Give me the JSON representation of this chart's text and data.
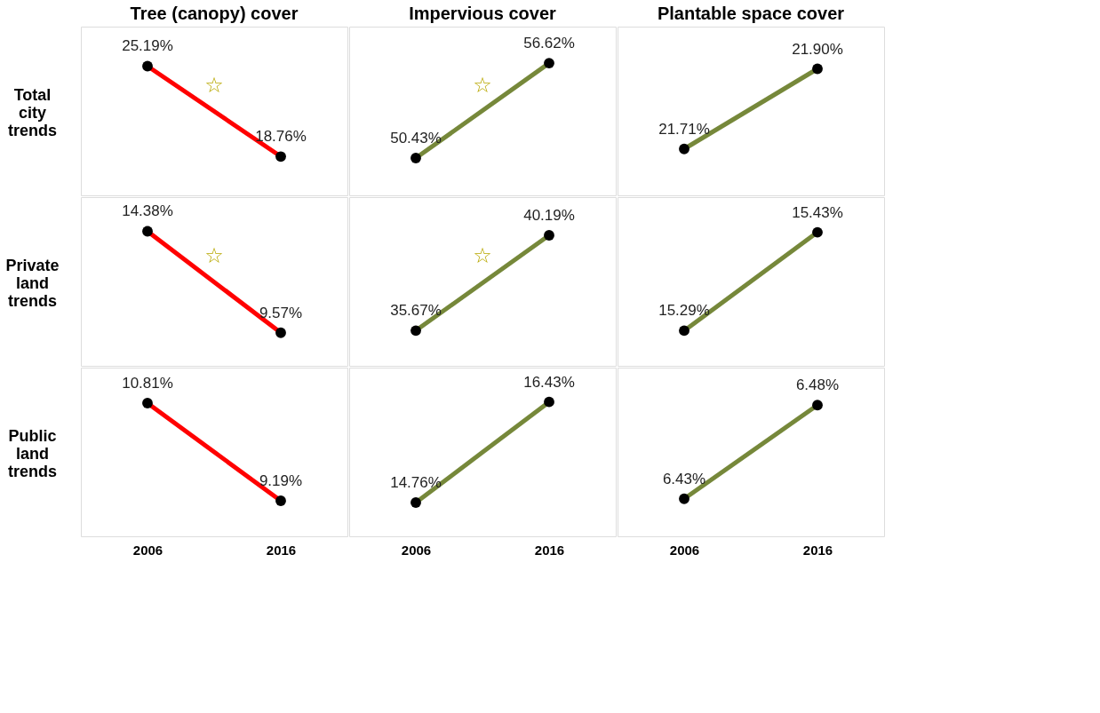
{
  "chart_data": [
    {
      "type": "line",
      "title": "Tree (canopy) cover",
      "ylabel": "Total city trends",
      "categories": [
        "2006",
        "2016"
      ],
      "series": [
        {
          "color": "#ff0000",
          "values": [
            25.19,
            18.76
          ],
          "value_labels": [
            "25.19%",
            "18.76%"
          ]
        }
      ],
      "marker": "circle",
      "tick_labels": false,
      "annotations": [
        "☆"
      ]
    },
    {
      "type": "line",
      "title": "Impervious cover",
      "categories": [
        "2006",
        "2016"
      ],
      "series": [
        {
          "color": "#76883a",
          "values": [
            50.43,
            56.62
          ],
          "value_labels": [
            "50.43%",
            "56.62%"
          ]
        }
      ],
      "marker": "circle",
      "tick_labels": false,
      "annotations": [
        "☆"
      ]
    },
    {
      "type": "line",
      "title": "Plantable space cover",
      "categories": [
        "2006",
        "2016"
      ],
      "series": [
        {
          "color": "#76883a",
          "values": [
            21.71,
            21.9
          ],
          "value_labels": [
            "21.71%",
            "21.90%"
          ]
        }
      ],
      "marker": "circle",
      "tick_labels": false
    },
    {
      "type": "line",
      "ylabel": "Private land trends",
      "categories": [
        "2006",
        "2016"
      ],
      "series": [
        {
          "color": "#ff0000",
          "values": [
            14.38,
            9.57
          ],
          "value_labels": [
            "14.38%",
            "9.57%"
          ]
        }
      ],
      "marker": "circle",
      "tick_labels": false,
      "annotations": [
        "☆"
      ]
    },
    {
      "type": "line",
      "categories": [
        "2006",
        "2016"
      ],
      "series": [
        {
          "color": "#76883a",
          "values": [
            35.67,
            40.19
          ],
          "value_labels": [
            "35.67%",
            "40.19%"
          ]
        }
      ],
      "marker": "circle",
      "tick_labels": false,
      "annotations": [
        "☆"
      ]
    },
    {
      "type": "line",
      "categories": [
        "2006",
        "2016"
      ],
      "series": [
        {
          "color": "#76883a",
          "values": [
            15.29,
            15.43
          ],
          "value_labels": [
            "15.29%",
            "15.43%"
          ]
        }
      ],
      "marker": "circle",
      "tick_labels": false
    },
    {
      "type": "line",
      "ylabel": "Public land trends",
      "categories": [
        "2006",
        "2016"
      ],
      "series": [
        {
          "color": "#ff0000",
          "values": [
            10.81,
            9.19
          ],
          "value_labels": [
            "10.81%",
            "9.19%"
          ]
        }
      ],
      "marker": "circle",
      "tick_labels": "x"
    },
    {
      "type": "line",
      "categories": [
        "2006",
        "2016"
      ],
      "series": [
        {
          "color": "#76883a",
          "values": [
            14.76,
            16.43
          ],
          "value_labels": [
            "14.76%",
            "16.43%"
          ]
        }
      ],
      "marker": "circle",
      "tick_labels": "x"
    },
    {
      "type": "line",
      "categories": [
        "2006",
        "2016"
      ],
      "series": [
        {
          "color": "#76883a",
          "values": [
            6.43,
            6.48
          ],
          "value_labels": [
            "6.43%",
            "6.48%"
          ]
        }
      ],
      "marker": "circle",
      "tick_labels": "x"
    }
  ]
}
